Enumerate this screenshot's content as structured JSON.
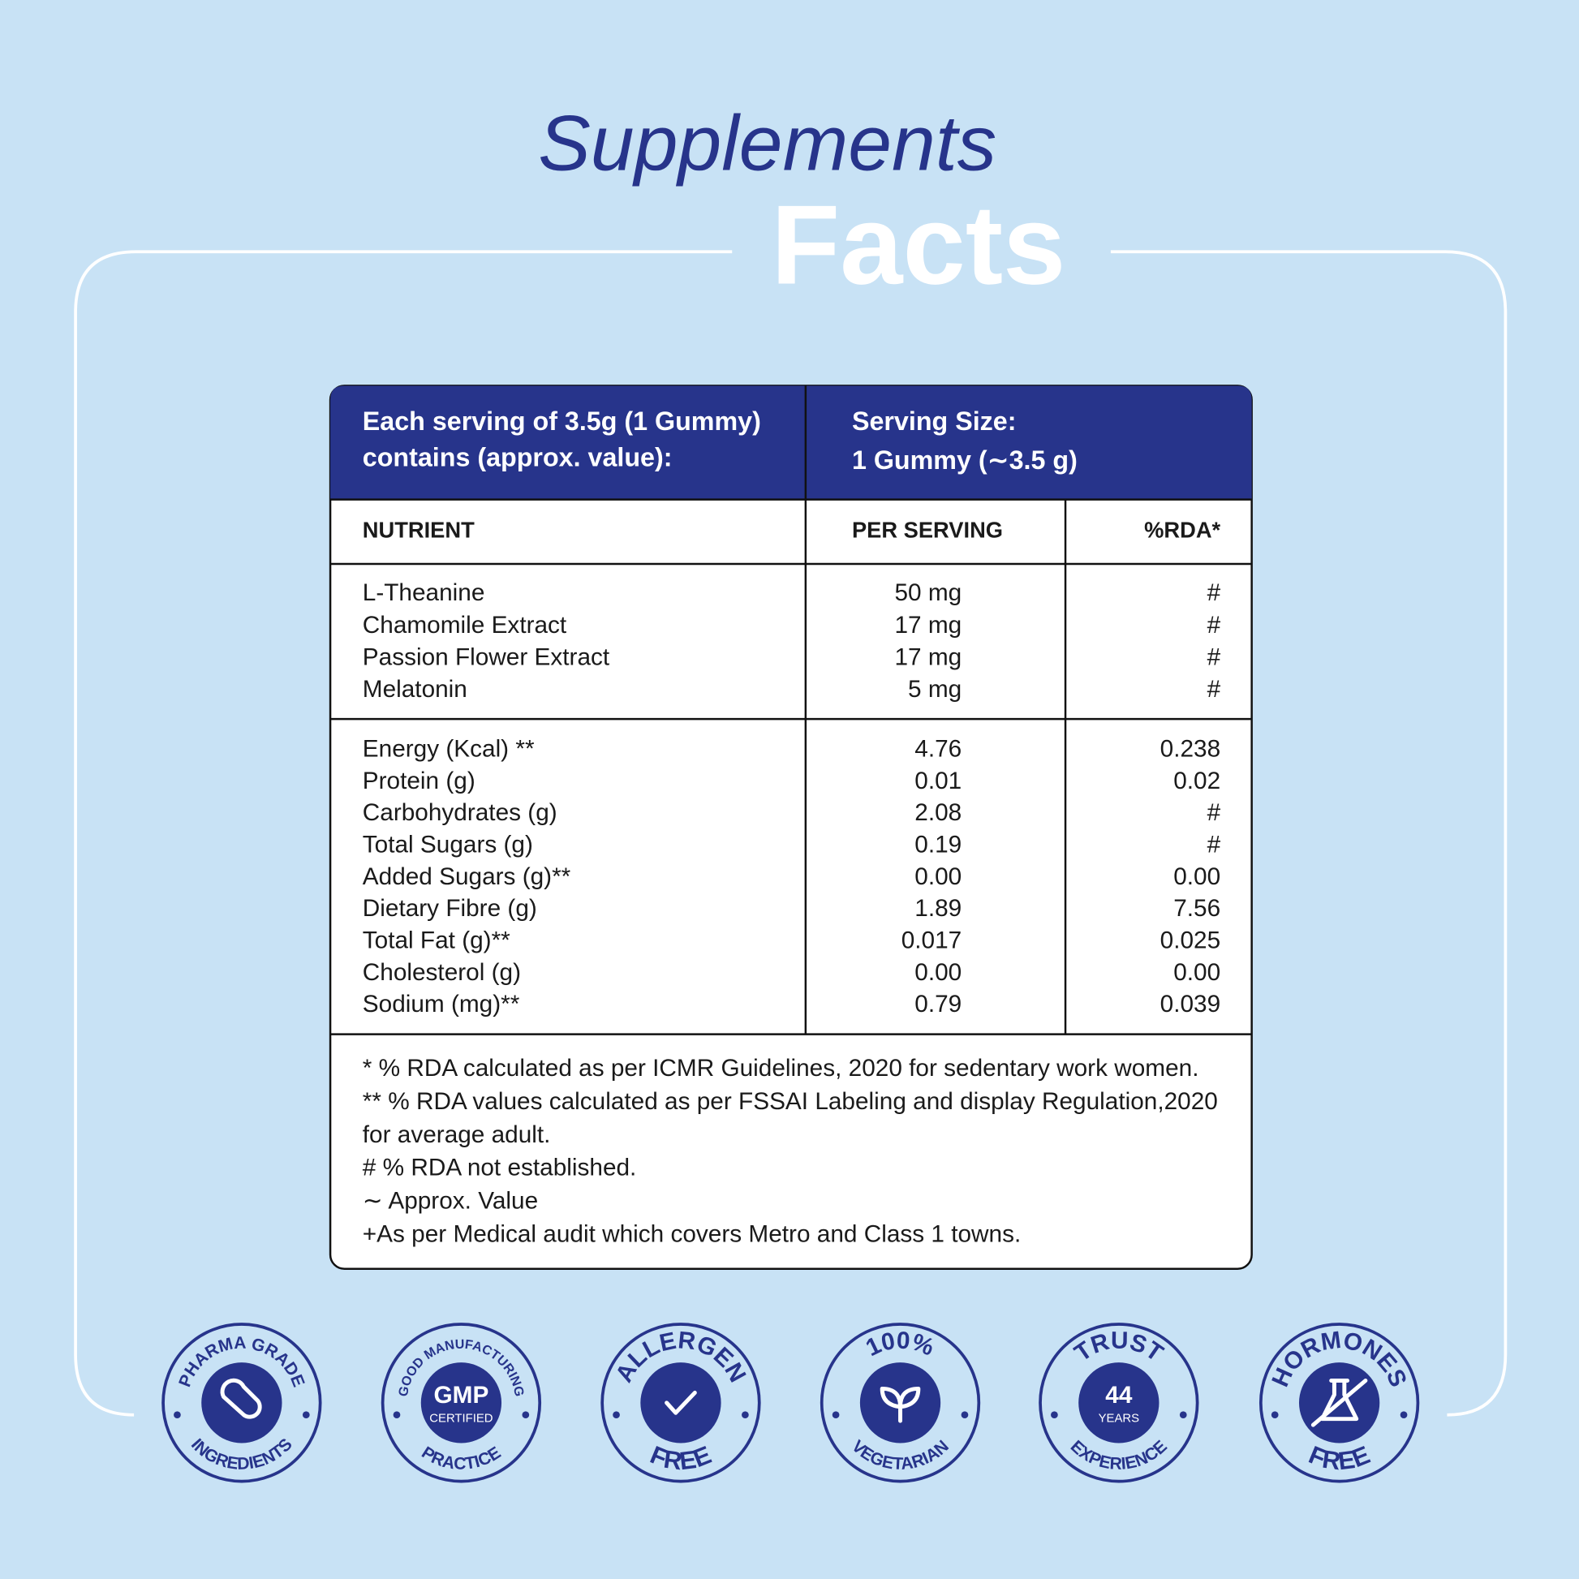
{
  "title": {
    "line1": "Supplements",
    "line2": "Facts"
  },
  "table": {
    "header": {
      "left": [
        "Each serving of 3.5g (1 Gummy)",
        "contains (approx. value):"
      ],
      "right": [
        "Serving Size:",
        "1 Gummy (∼3.5 g)"
      ]
    },
    "columns": [
      "NUTRIENT",
      "PER SERVING",
      "%RDA*"
    ],
    "groups": [
      [
        [
          "L-Theanine",
          "50 mg",
          "#"
        ],
        [
          "Chamomile Extract",
          "17 mg",
          "#"
        ],
        [
          "Passion Flower Extract",
          "17 mg",
          "#"
        ],
        [
          "Melatonin",
          "5 mg",
          "#"
        ]
      ],
      [
        [
          "Energy (Kcal) **",
          "4.76",
          "0.238"
        ],
        [
          "Protein (g)",
          "0.01",
          "0.02"
        ],
        [
          "Carbohydrates (g)",
          "2.08",
          "#"
        ],
        [
          "Total Sugars (g)",
          "0.19",
          "#"
        ],
        [
          "Added Sugars (g)**",
          "0.00",
          "0.00"
        ],
        [
          "Dietary Fibre (g)",
          "1.89",
          "7.56"
        ],
        [
          "Total Fat (g)**",
          "0.017",
          "0.025"
        ],
        [
          "Cholesterol (g)",
          "0.00",
          "0.00"
        ],
        [
          "Sodium (mg)**",
          "0.79",
          "0.039"
        ]
      ]
    ],
    "notes": [
      "* % RDA calculated as per ICMR Guidelines, 2020 for sedentary work women.",
      "** % RDA values calculated as per FSSAI Labeling and display Regulation,2020",
      "for average adult.",
      "# % RDA not established.",
      "∼ Approx. Value",
      "+As per Medical audit which covers Metro and Class 1 towns."
    ]
  },
  "badges": [
    {
      "top": "PHARMA GRADE",
      "bottom": "INGREDIENTS"
    },
    {
      "top": "GOOD MANUFACTURING",
      "center": [
        "GMP",
        "CERTIFIED"
      ],
      "bottom": "PRACTICE"
    },
    {
      "top": "ALLERGEN",
      "bottom": "FREE"
    },
    {
      "top": "100%",
      "bottom": "VEGETARIAN"
    },
    {
      "top": "TRUST",
      "center": [
        "44",
        "YEARS"
      ],
      "bottom": "EXPERIENCE"
    },
    {
      "top": "HORMONES",
      "bottom": "FREE"
    }
  ]
}
